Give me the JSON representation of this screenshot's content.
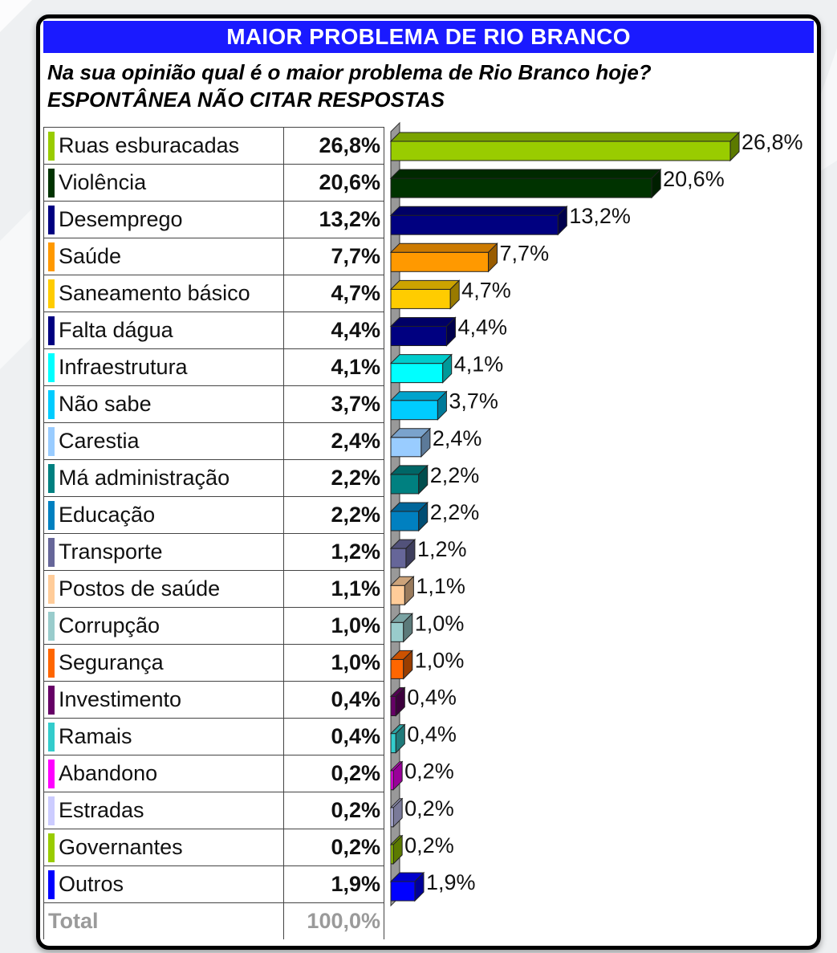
{
  "header": {
    "title": "MAIOR PROBLEMA DE RIO BRANCO",
    "question_line1": "Na sua opinião qual é o maior problema de Rio Branco hoje?",
    "question_line2": "ESPONTÂNEA NÃO CITAR RESPOSTAS"
  },
  "total": {
    "label": "Total",
    "value": "100,0%"
  },
  "chart_data": {
    "type": "bar",
    "orientation": "horizontal",
    "title": "MAIOR PROBLEMA DE RIO BRANCO",
    "categories": [
      "Ruas esburacadas",
      "Violência",
      "Desemprego",
      "Saúde",
      "Saneamento básico",
      "Falta dágua",
      "Infraestrutura",
      "Não sabe",
      "Carestia",
      "Má administração",
      "Educação",
      "Transporte",
      "Postos de saúde",
      "Corrupção",
      "Segurança",
      "Investimento",
      "Ramais",
      "Abandono",
      "Estradas",
      "Governantes",
      "Outros"
    ],
    "values": [
      26.8,
      20.6,
      13.2,
      7.7,
      4.7,
      4.4,
      4.1,
      3.7,
      2.4,
      2.2,
      2.2,
      1.2,
      1.1,
      1.0,
      1.0,
      0.4,
      0.4,
      0.2,
      0.2,
      0.2,
      1.9
    ],
    "value_labels": [
      "26,8%",
      "20,6%",
      "13,2%",
      "7,7%",
      "4,7%",
      "4,4%",
      "4,1%",
      "3,7%",
      "2,4%",
      "2,2%",
      "2,2%",
      "1,2%",
      "1,1%",
      "1,0%",
      "1,0%",
      "0,4%",
      "0,4%",
      "0,2%",
      "0,2%",
      "0,2%",
      "1,9%"
    ],
    "colors": [
      "#99cc00",
      "#003300",
      "#000080",
      "#ff9900",
      "#ffcc00",
      "#000080",
      "#00ffff",
      "#00ccff",
      "#99ccff",
      "#008080",
      "#0080c0",
      "#666699",
      "#ffcc99",
      "#99cccc",
      "#ff6600",
      "#660066",
      "#33cccc",
      "#ff00ff",
      "#ccccff",
      "#99cc00",
      "#0000ff"
    ],
    "xlim": [
      0,
      26.8
    ],
    "grid": false,
    "legend": "table-left"
  }
}
